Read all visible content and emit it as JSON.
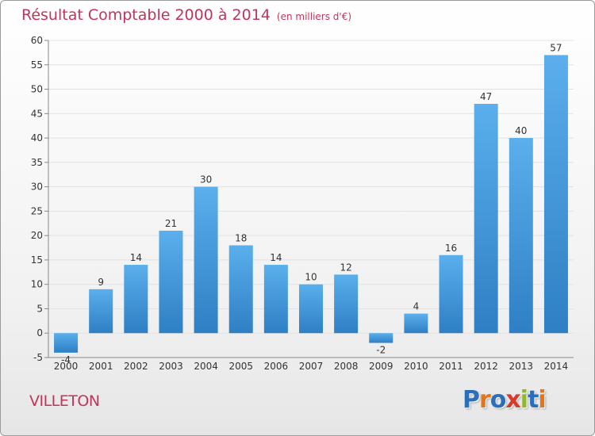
{
  "title": {
    "main": "Résultat Comptable 2000 à 2014",
    "unit": "(en milliers d'€)"
  },
  "commune": "VILLETON",
  "logo": {
    "text": "Proxiti",
    "letter_colors": [
      "#2c6fb8",
      "#e8731a",
      "#2c6fb8",
      "#d83a2c",
      "#8fb82c",
      "#2c6fb8",
      "#e8731a"
    ]
  },
  "colors": {
    "bar_top": "#5aafec",
    "bar_bottom": "#2e7fc4",
    "title": "#c0355a",
    "grid": "#e2e2e2",
    "axis": "#888888",
    "label": "#333333"
  },
  "chart_data": {
    "type": "bar",
    "categories": [
      "2000",
      "2001",
      "2002",
      "2003",
      "2004",
      "2005",
      "2006",
      "2007",
      "2008",
      "2009",
      "2010",
      "2011",
      "2012",
      "2013",
      "2014"
    ],
    "values": [
      -4,
      9,
      14,
      21,
      30,
      18,
      14,
      10,
      12,
      -2,
      4,
      16,
      47,
      40,
      57
    ],
    "data_labels": [
      "-4",
      "9",
      "14",
      "21",
      "30",
      "18",
      "14",
      "10",
      "12",
      "-2",
      "4",
      "16",
      "47",
      "40",
      "57"
    ],
    "ylim": [
      -5,
      60
    ],
    "yticks": [
      -5,
      0,
      5,
      10,
      15,
      20,
      25,
      30,
      35,
      40,
      45,
      50,
      55,
      60
    ],
    "grid": true,
    "xlabel": "",
    "ylabel": ""
  }
}
